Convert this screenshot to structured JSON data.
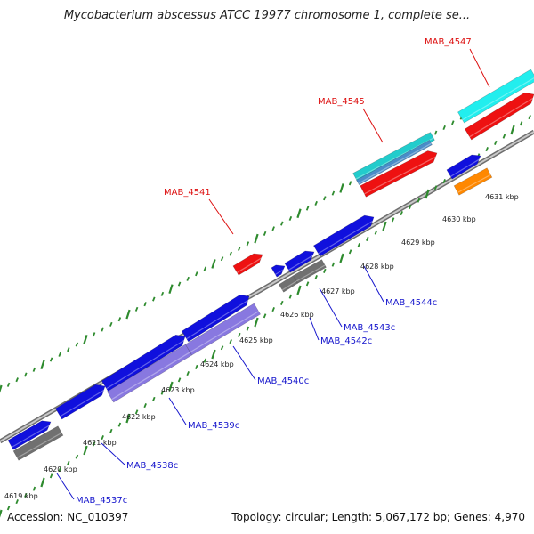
{
  "title": "Mycobacterium abscessus ATCC 19977 chromosome 1, complete se...",
  "footer": {
    "accession": "Accession: NC_010397",
    "summary": "Topology: circular; Length: 5,067,172 bp; Genes: 4,970"
  },
  "colors": {
    "backbone": "#9a9a9a",
    "tick": "#2e8b2e",
    "label_forward": "#dd1111",
    "label_reverse": "#1515cc",
    "label_kbp": "#222222"
  },
  "ticks": [
    "4619 kbp",
    "4620 kbp",
    "4621 kbp",
    "4622 kbp",
    "4623 kbp",
    "4624 kbp",
    "4625 kbp",
    "4626 kbp",
    "4627 kbp",
    "4628 kbp",
    "4629 kbp",
    "4630 kbp",
    "4631 kbp"
  ],
  "gene_labels": [
    {
      "text": "MAB_4537c",
      "strand": "reverse"
    },
    {
      "text": "MAB_4538c",
      "strand": "reverse"
    },
    {
      "text": "MAB_4539c",
      "strand": "reverse"
    },
    {
      "text": "MAB_4540c",
      "strand": "reverse"
    },
    {
      "text": "MAB_4542c",
      "strand": "reverse"
    },
    {
      "text": "MAB_4543c",
      "strand": "reverse"
    },
    {
      "text": "MAB_4544c",
      "strand": "reverse"
    },
    {
      "text": "MAB_4541",
      "strand": "forward"
    },
    {
      "text": "MAB_4545",
      "strand": "forward"
    },
    {
      "text": "MAB_4547",
      "strand": "forward"
    }
  ],
  "features": [
    {
      "name": "gene-arrow",
      "color": "#1010dd"
    },
    {
      "name": "cds-bar",
      "color": "#707070"
    },
    {
      "name": "gene-arrow",
      "color": "#1010dd"
    },
    {
      "name": "gene-arrow",
      "color": "#1010dd"
    },
    {
      "name": "cds-bar",
      "color": "#8878e0"
    },
    {
      "name": "gene-arrow",
      "color": "#1010dd"
    },
    {
      "name": "cds-bar",
      "color": "#8878e0"
    },
    {
      "name": "gene-arrow",
      "color": "#1010dd"
    },
    {
      "name": "gene-arrow",
      "color": "#1010dd"
    },
    {
      "name": "cds-bar",
      "color": "#707070"
    },
    {
      "name": "cds-bar",
      "color": "#707070"
    },
    {
      "name": "gene-arrow",
      "color": "#1010dd"
    },
    {
      "name": "gene-arrow",
      "color": "#ee1111"
    },
    {
      "name": "gene-arrow",
      "color": "#ee1111"
    },
    {
      "name": "rna-bar",
      "color": "#22cccc"
    },
    {
      "name": "cds-bar",
      "color": "#4a8cc8"
    },
    {
      "name": "gene-arrow",
      "color": "#1010dd"
    },
    {
      "name": "cds-bar",
      "color": "#ff8800"
    },
    {
      "name": "rna-bar",
      "color": "#22eeee"
    },
    {
      "name": "gene-arrow",
      "color": "#ee1111"
    }
  ]
}
